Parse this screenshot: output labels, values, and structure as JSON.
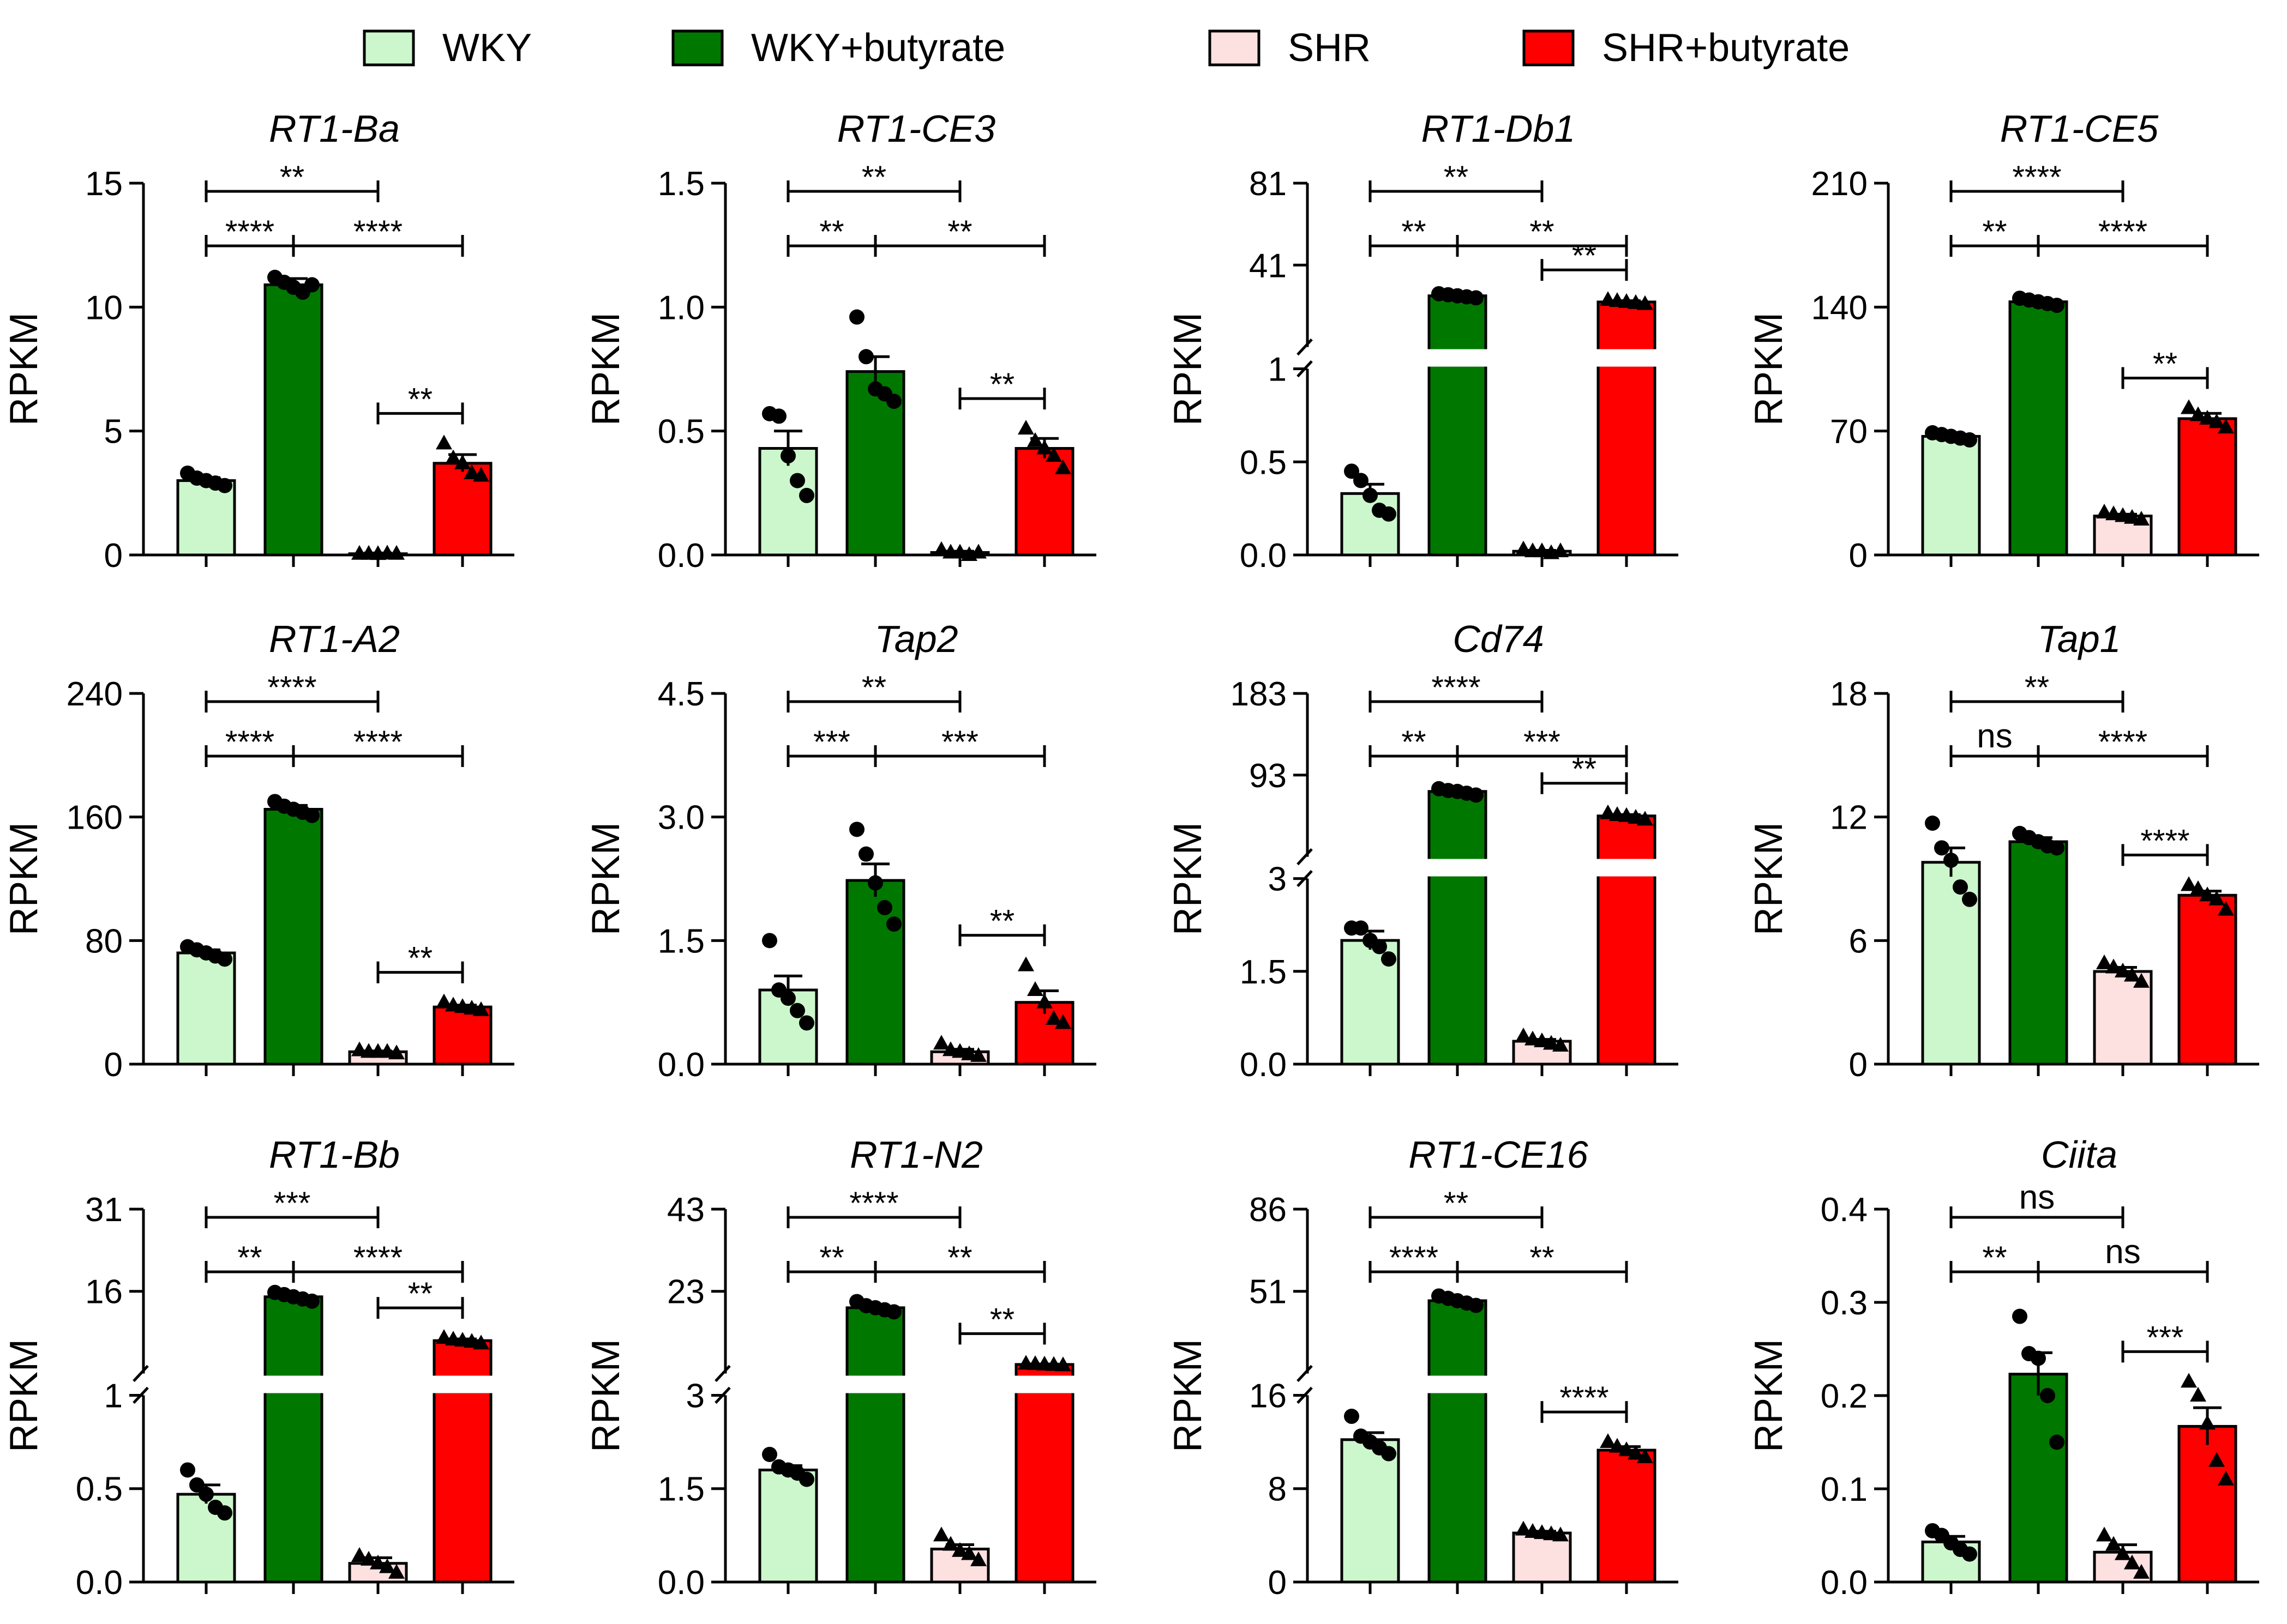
{
  "legend": [
    {
      "label": "WKY",
      "color": "#ccf7cc"
    },
    {
      "label": "WKY+butyrate",
      "color": "#007800"
    },
    {
      "label": "SHR",
      "color": "#fde0e0"
    },
    {
      "label": "SHR+butyrate",
      "color": "#ff0000"
    }
  ],
  "chart_data": [
    {
      "type": "bar",
      "title": "RT1-Ba",
      "ylabel": "RPKM",
      "categories": [
        "WKY",
        "WKY+butyrate",
        "SHR",
        "SHR+butyrate"
      ],
      "values": [
        3.0,
        10.9,
        0.05,
        3.7
      ],
      "errors": [
        0.12,
        0.25,
        0.03,
        0.35
      ],
      "points": [
        [
          3.3,
          3.1,
          3.0,
          2.9,
          2.8
        ],
        [
          11.2,
          11.0,
          10.8,
          10.6,
          10.9
        ],
        [
          0.05,
          0.05,
          0.04,
          0.06,
          0.05
        ],
        [
          4.5,
          3.9,
          3.7,
          3.3,
          3.2
        ]
      ],
      "ylim": [
        0,
        15
      ],
      "yticks": [
        "0",
        "5",
        "10",
        "15"
      ],
      "comparisons": [
        {
          "a": 0,
          "b": 2,
          "label": "**"
        },
        {
          "a": 0,
          "b": 1,
          "label": "****"
        },
        {
          "a": 1,
          "b": 3,
          "label": "****"
        },
        {
          "a": 2,
          "b": 3,
          "label": "**"
        }
      ]
    },
    {
      "type": "bar",
      "title": "RT1-CE3",
      "ylabel": "RPKM",
      "categories": [
        "WKY",
        "WKY+butyrate",
        "SHR",
        "SHR+butyrate"
      ],
      "values": [
        0.43,
        0.74,
        0.01,
        0.43
      ],
      "errors": [
        0.07,
        0.06,
        0.005,
        0.04
      ],
      "points": [
        [
          0.57,
          0.56,
          0.4,
          0.3,
          0.24
        ],
        [
          0.96,
          0.8,
          0.67,
          0.65,
          0.62
        ],
        [
          0.02,
          0.01,
          0.01,
          0.0,
          0.01
        ],
        [
          0.51,
          0.46,
          0.43,
          0.4,
          0.35
        ]
      ],
      "ylim": [
        0,
        1.5
      ],
      "yticks": [
        "0.0",
        "0.5",
        "1.0",
        "1.5"
      ],
      "comparisons": [
        {
          "a": 0,
          "b": 2,
          "label": "**"
        },
        {
          "a": 0,
          "b": 1,
          "label": "**"
        },
        {
          "a": 1,
          "b": 3,
          "label": "**"
        },
        {
          "a": 2,
          "b": 3,
          "label": "**"
        }
      ]
    },
    {
      "type": "bar",
      "title": "RT1-Db1",
      "ylabel": "RPKM",
      "categories": [
        "WKY",
        "WKY+butyrate",
        "SHR",
        "SHR+butyrate"
      ],
      "values": [
        0.33,
        26,
        0.02,
        23
      ],
      "errors": [
        0.05,
        0.5,
        0.005,
        0.6
      ],
      "points": [
        [
          0.45,
          0.4,
          0.32,
          0.24,
          0.22
        ],
        [
          27,
          26.5,
          26,
          25.5,
          25
        ],
        [
          0.03,
          0.02,
          0.02,
          0.01,
          0.02
        ],
        [
          24,
          23.5,
          23,
          22.5,
          22
        ]
      ],
      "broken": {
        "lower": [
          0,
          1
        ],
        "upper": [
          1,
          81
        ],
        "lower_ticks": [
          "0.0",
          "0.5",
          "1"
        ],
        "upper_ticks": [
          "41",
          "81"
        ]
      },
      "comparisons": [
        {
          "a": 0,
          "b": 2,
          "label": "**"
        },
        {
          "a": 0,
          "b": 1,
          "label": "**"
        },
        {
          "a": 1,
          "b": 3,
          "label": "**"
        },
        {
          "a": 2,
          "b": 3,
          "label": "**"
        }
      ]
    },
    {
      "type": "bar",
      "title": "RT1-CE5",
      "ylabel": "RPKM",
      "categories": [
        "WKY",
        "WKY+butyrate",
        "SHR",
        "SHR+butyrate"
      ],
      "values": [
        67,
        143,
        22,
        77
      ],
      "errors": [
        1.0,
        1.2,
        1.0,
        3.0
      ],
      "points": [
        [
          69,
          68,
          67,
          66,
          65
        ],
        [
          145,
          144,
          143,
          142,
          141
        ],
        [
          24,
          23,
          22,
          21,
          20
        ],
        [
          83,
          79,
          77,
          75,
          72
        ]
      ],
      "ylim": [
        0,
        210
      ],
      "yticks": [
        "0",
        "70",
        "140",
        "210"
      ],
      "comparisons": [
        {
          "a": 0,
          "b": 2,
          "label": "****"
        },
        {
          "a": 0,
          "b": 1,
          "label": "**"
        },
        {
          "a": 1,
          "b": 3,
          "label": "****"
        },
        {
          "a": 2,
          "b": 3,
          "label": "**"
        }
      ]
    },
    {
      "type": "bar",
      "title": "RT1-A2",
      "ylabel": "RPKM",
      "categories": [
        "WKY",
        "WKY+butyrate",
        "SHR",
        "SHR+butyrate"
      ],
      "values": [
        72,
        165,
        8,
        37
      ],
      "errors": [
        2.0,
        2.5,
        0.5,
        1.2
      ],
      "points": [
        [
          76,
          74,
          72,
          70,
          68
        ],
        [
          170,
          167,
          165,
          163,
          161
        ],
        [
          9,
          8,
          8,
          8,
          7
        ],
        [
          40,
          38,
          37,
          36,
          35
        ]
      ],
      "ylim": [
        0,
        240
      ],
      "yticks": [
        "0",
        "80",
        "160",
        "240"
      ],
      "comparisons": [
        {
          "a": 0,
          "b": 2,
          "label": "****"
        },
        {
          "a": 0,
          "b": 1,
          "label": "****"
        },
        {
          "a": 1,
          "b": 3,
          "label": "****"
        },
        {
          "a": 2,
          "b": 3,
          "label": "**"
        }
      ]
    },
    {
      "type": "bar",
      "title": "Tap2",
      "ylabel": "RPKM",
      "categories": [
        "WKY",
        "WKY+butyrate",
        "SHR",
        "SHR+butyrate"
      ],
      "values": [
        0.9,
        2.23,
        0.15,
        0.75
      ],
      "errors": [
        0.17,
        0.2,
        0.03,
        0.14
      ],
      "points": [
        [
          1.5,
          0.9,
          0.8,
          0.65,
          0.5
        ],
        [
          2.85,
          2.55,
          2.2,
          1.9,
          1.7
        ],
        [
          0.25,
          0.17,
          0.15,
          0.12,
          0.1
        ],
        [
          1.2,
          0.9,
          0.75,
          0.55,
          0.5
        ]
      ],
      "ylim": [
        0,
        4.5
      ],
      "yticks": [
        "0.0",
        "1.5",
        "3.0",
        "4.5"
      ],
      "comparisons": [
        {
          "a": 0,
          "b": 2,
          "label": "**"
        },
        {
          "a": 0,
          "b": 1,
          "label": "***"
        },
        {
          "a": 1,
          "b": 3,
          "label": "***"
        },
        {
          "a": 2,
          "b": 3,
          "label": "**"
        }
      ]
    },
    {
      "type": "bar",
      "title": "Cd74",
      "ylabel": "RPKM",
      "categories": [
        "WKY",
        "WKY+butyrate",
        "SHR",
        "SHR+butyrate"
      ],
      "values": [
        2.0,
        75,
        0.37,
        48
      ],
      "errors": [
        0.15,
        1.5,
        0.03,
        1.5
      ],
      "points": [
        [
          2.2,
          2.2,
          2.0,
          1.9,
          1.7
        ],
        [
          78,
          76,
          75,
          73,
          71
        ],
        [
          0.45,
          0.4,
          0.37,
          0.33,
          0.3
        ],
        [
          51,
          49,
          48,
          46,
          44
        ]
      ],
      "broken": {
        "lower": [
          0,
          3
        ],
        "upper": [
          3,
          183
        ],
        "lower_ticks": [
          "0.0",
          "1.5",
          "3"
        ],
        "upper_ticks": [
          "93",
          "183"
        ]
      },
      "comparisons": [
        {
          "a": 0,
          "b": 2,
          "label": "****"
        },
        {
          "a": 0,
          "b": 1,
          "label": "**"
        },
        {
          "a": 1,
          "b": 3,
          "label": "***"
        },
        {
          "a": 2,
          "b": 3,
          "label": "**"
        }
      ]
    },
    {
      "type": "bar",
      "title": "Tap1",
      "ylabel": "RPKM",
      "categories": [
        "WKY",
        "WKY+butyrate",
        "SHR",
        "SHR+butyrate"
      ],
      "values": [
        9.8,
        10.8,
        4.5,
        8.2
      ],
      "errors": [
        0.7,
        0.2,
        0.2,
        0.2
      ],
      "points": [
        [
          11.7,
          10.5,
          9.9,
          8.6,
          8.0
        ],
        [
          11.2,
          11.0,
          10.8,
          10.6,
          10.5
        ],
        [
          4.9,
          4.7,
          4.5,
          4.3,
          4.0
        ],
        [
          8.7,
          8.5,
          8.2,
          8.0,
          7.5
        ]
      ],
      "ylim": [
        0,
        18
      ],
      "yticks": [
        "0",
        "6",
        "12",
        "18"
      ],
      "comparisons": [
        {
          "a": 0,
          "b": 2,
          "label": "**"
        },
        {
          "a": 0,
          "b": 1,
          "label": "ns"
        },
        {
          "a": 1,
          "b": 3,
          "label": "****"
        },
        {
          "a": 2,
          "b": 3,
          "label": "****"
        }
      ]
    },
    {
      "type": "bar",
      "title": "RT1-Bb",
      "ylabel": "RPKM",
      "categories": [
        "WKY",
        "WKY+butyrate",
        "SHR",
        "SHR+butyrate"
      ],
      "values": [
        0.47,
        15,
        0.1,
        7.0
      ],
      "errors": [
        0.05,
        0.4,
        0.03,
        0.3
      ],
      "points": [
        [
          0.6,
          0.52,
          0.47,
          0.4,
          0.37
        ],
        [
          15.8,
          15.4,
          15.0,
          14.6,
          14.2
        ],
        [
          0.14,
          0.12,
          0.1,
          0.08,
          0.05
        ],
        [
          7.5,
          7.2,
          7.0,
          6.8,
          6.5
        ]
      ],
      "broken": {
        "lower": [
          0,
          1
        ],
        "upper": [
          1,
          31
        ],
        "lower_ticks": [
          "0.0",
          "0.5",
          "1"
        ],
        "upper_ticks": [
          "16",
          "31"
        ]
      },
      "comparisons": [
        {
          "a": 0,
          "b": 2,
          "label": "***"
        },
        {
          "a": 0,
          "b": 1,
          "label": "**"
        },
        {
          "a": 1,
          "b": 3,
          "label": "****"
        },
        {
          "a": 2,
          "b": 3,
          "label": "**"
        }
      ]
    },
    {
      "type": "bar",
      "title": "RT1-N2",
      "ylabel": "RPKM",
      "categories": [
        "WKY",
        "WKY+butyrate",
        "SHR",
        "SHR+butyrate"
      ],
      "values": [
        1.8,
        19,
        0.53,
        5.2
      ],
      "errors": [
        0.07,
        0.5,
        0.07,
        0.1
      ],
      "points": [
        [
          2.05,
          1.85,
          1.8,
          1.75,
          1.65
        ],
        [
          20.5,
          19.5,
          19.0,
          18.5,
          18.0
        ],
        [
          0.75,
          0.6,
          0.5,
          0.45,
          0.35
        ],
        [
          5.4,
          5.3,
          5.2,
          5.1,
          5.0
        ]
      ],
      "broken": {
        "lower": [
          0,
          3
        ],
        "upper": [
          3,
          43
        ],
        "lower_ticks": [
          "0.0",
          "1.5",
          "3"
        ],
        "upper_ticks": [
          "23",
          "43"
        ]
      },
      "comparisons": [
        {
          "a": 0,
          "b": 2,
          "label": "****"
        },
        {
          "a": 0,
          "b": 1,
          "label": "**"
        },
        {
          "a": 1,
          "b": 3,
          "label": "**"
        },
        {
          "a": 2,
          "b": 3,
          "label": "**"
        }
      ]
    },
    {
      "type": "bar",
      "title": "RT1-CE16",
      "ylabel": "RPKM",
      "categories": [
        "WKY",
        "WKY+butyrate",
        "SHR",
        "SHR+butyrate"
      ],
      "values": [
        12.2,
        47,
        4.2,
        11.3
      ],
      "errors": [
        0.6,
        0.8,
        0.15,
        0.3
      ],
      "points": [
        [
          14.2,
          12.5,
          12.0,
          11.5,
          11.0
        ],
        [
          49,
          48,
          47,
          46,
          45
        ],
        [
          4.5,
          4.3,
          4.2,
          4.1,
          4.0
        ],
        [
          12.0,
          11.6,
          11.3,
          11.0,
          10.7
        ]
      ],
      "broken": {
        "lower": [
          0,
          16
        ],
        "upper": [
          16,
          86
        ],
        "lower_ticks": [
          "0",
          "8",
          "16"
        ],
        "upper_ticks": [
          "51",
          "86"
        ]
      },
      "comparisons": [
        {
          "a": 0,
          "b": 2,
          "label": "**"
        },
        {
          "a": 0,
          "b": 1,
          "label": "****"
        },
        {
          "a": 1,
          "b": 3,
          "label": "**"
        },
        {
          "a": 2,
          "b": 3,
          "label": "****"
        }
      ]
    },
    {
      "type": "bar",
      "title": "Ciita",
      "ylabel": "RPKM",
      "categories": [
        "WKY",
        "WKY+butyrate",
        "SHR",
        "SHR+butyrate"
      ],
      "values": [
        0.043,
        0.223,
        0.032,
        0.167
      ],
      "errors": [
        0.006,
        0.023,
        0.008,
        0.02
      ],
      "points": [
        [
          0.055,
          0.05,
          0.042,
          0.035,
          0.03
        ],
        [
          0.285,
          0.245,
          0.24,
          0.2,
          0.15
        ],
        [
          0.05,
          0.04,
          0.03,
          0.02,
          0.01
        ],
        [
          0.215,
          0.2,
          0.17,
          0.13,
          0.11
        ]
      ],
      "ylim": [
        0,
        0.4
      ],
      "yticks": [
        "0.0",
        "0.1",
        "0.2",
        "0.3",
        "0.4"
      ],
      "comparisons": [
        {
          "a": 0,
          "b": 2,
          "label": "ns"
        },
        {
          "a": 0,
          "b": 1,
          "label": "**"
        },
        {
          "a": 1,
          "b": 3,
          "label": "ns"
        },
        {
          "a": 2,
          "b": 3,
          "label": "***"
        }
      ]
    }
  ]
}
